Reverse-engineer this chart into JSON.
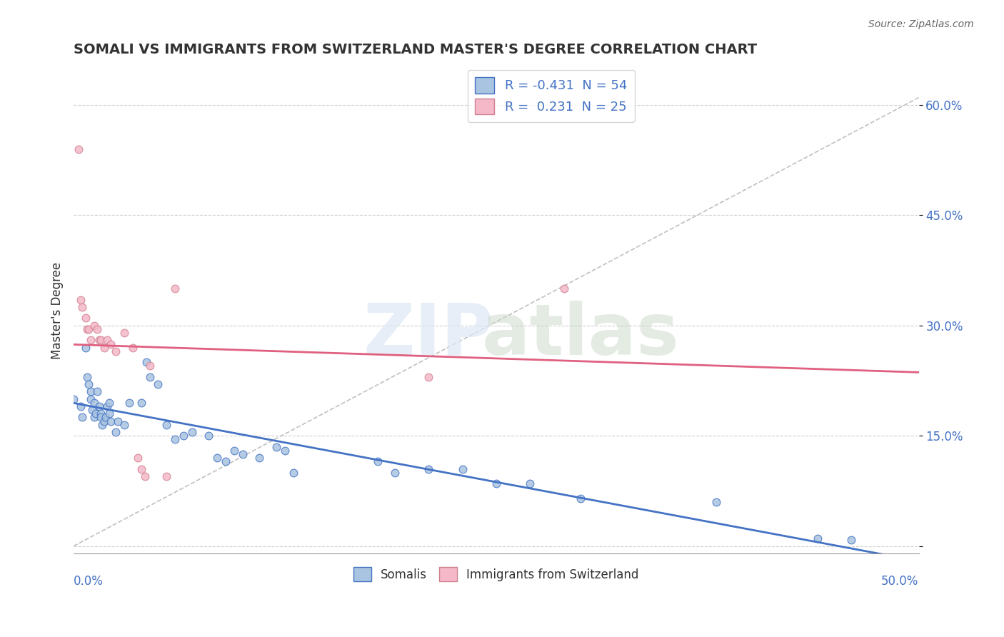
{
  "title": "SOMALI VS IMMIGRANTS FROM SWITZERLAND MASTER'S DEGREE CORRELATION CHART",
  "source": "Source: ZipAtlas.com",
  "ylabel": "Master's Degree",
  "y_ticks": [
    0.0,
    0.15,
    0.3,
    0.45,
    0.6
  ],
  "xlim": [
    0.0,
    0.5
  ],
  "ylim": [
    -0.01,
    0.65
  ],
  "somali_R": -0.431,
  "somali_N": 54,
  "swiss_R": 0.231,
  "swiss_N": 25,
  "somali_color": "#a8c4e0",
  "somali_line_color": "#4472c4",
  "swiss_color": "#f4b8c8",
  "swiss_edge_color": "#d08090",
  "swiss_line_color": "#e06080",
  "background_color": "#ffffff",
  "somali_x": [
    0.0,
    0.004,
    0.005,
    0.007,
    0.008,
    0.009,
    0.01,
    0.01,
    0.011,
    0.012,
    0.012,
    0.013,
    0.014,
    0.015,
    0.016,
    0.016,
    0.017,
    0.018,
    0.019,
    0.02,
    0.021,
    0.021,
    0.022,
    0.025,
    0.026,
    0.03,
    0.033,
    0.04,
    0.043,
    0.045,
    0.05,
    0.055,
    0.06,
    0.065,
    0.07,
    0.08,
    0.085,
    0.09,
    0.095,
    0.1,
    0.11,
    0.12,
    0.125,
    0.13,
    0.18,
    0.19,
    0.21,
    0.23,
    0.25,
    0.27,
    0.3,
    0.38,
    0.44,
    0.46
  ],
  "somali_y": [
    0.2,
    0.19,
    0.175,
    0.27,
    0.23,
    0.22,
    0.21,
    0.2,
    0.185,
    0.195,
    0.175,
    0.18,
    0.21,
    0.19,
    0.18,
    0.175,
    0.165,
    0.17,
    0.175,
    0.19,
    0.18,
    0.195,
    0.17,
    0.155,
    0.17,
    0.165,
    0.195,
    0.195,
    0.25,
    0.23,
    0.22,
    0.165,
    0.145,
    0.15,
    0.155,
    0.15,
    0.12,
    0.115,
    0.13,
    0.125,
    0.12,
    0.135,
    0.13,
    0.1,
    0.115,
    0.1,
    0.105,
    0.105,
    0.085,
    0.085,
    0.065,
    0.06,
    0.01,
    0.008
  ],
  "swiss_x": [
    0.003,
    0.004,
    0.005,
    0.007,
    0.008,
    0.009,
    0.01,
    0.012,
    0.014,
    0.015,
    0.016,
    0.018,
    0.02,
    0.022,
    0.025,
    0.03,
    0.035,
    0.038,
    0.04,
    0.042,
    0.045,
    0.055,
    0.06,
    0.21,
    0.29
  ],
  "swiss_y": [
    0.54,
    0.335,
    0.325,
    0.31,
    0.295,
    0.295,
    0.28,
    0.3,
    0.295,
    0.28,
    0.28,
    0.27,
    0.28,
    0.275,
    0.265,
    0.29,
    0.27,
    0.12,
    0.105,
    0.095,
    0.245,
    0.095,
    0.35,
    0.23,
    0.35
  ]
}
